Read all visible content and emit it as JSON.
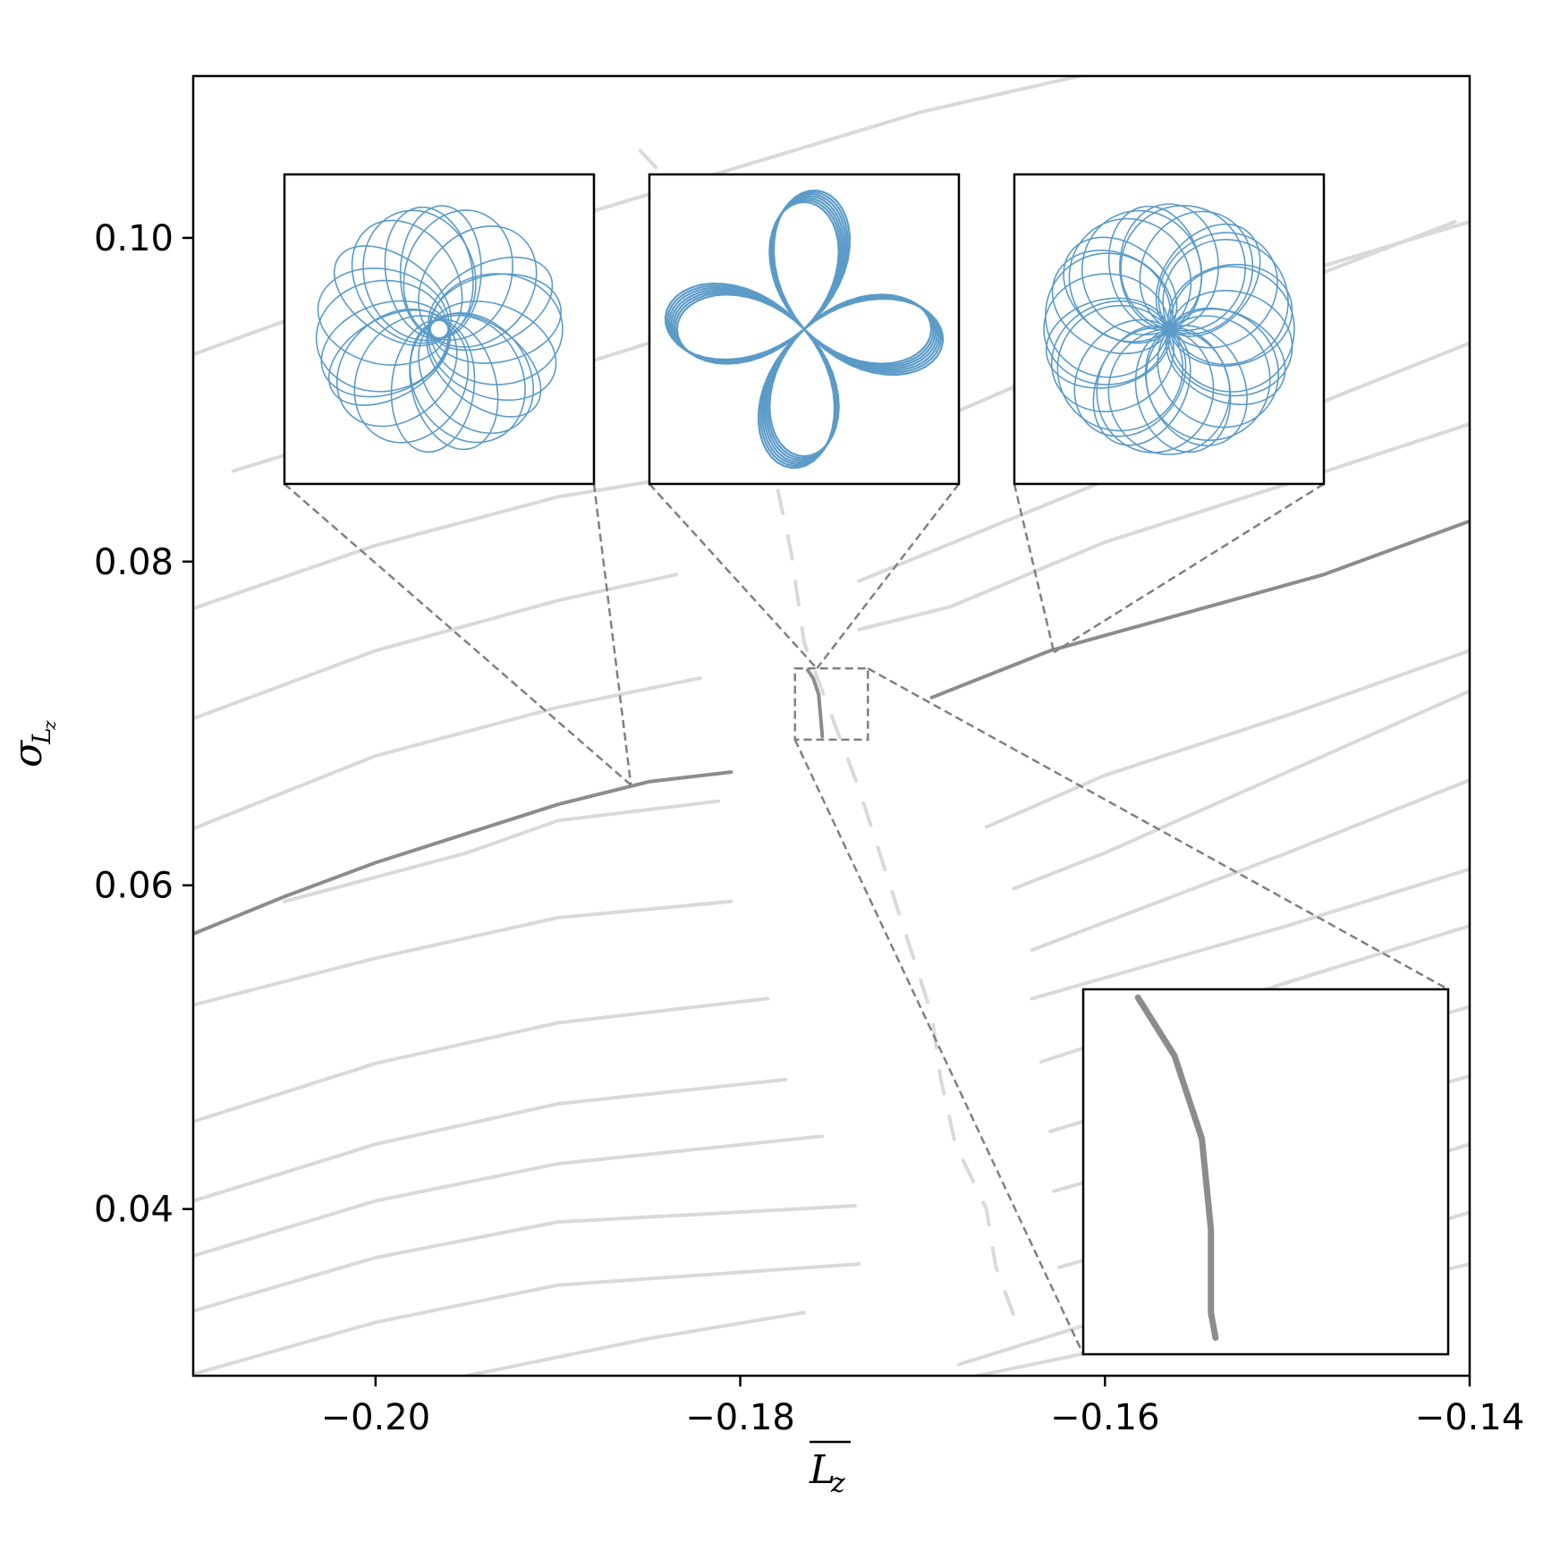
{
  "chart_data": {
    "type": "scatter",
    "title": "",
    "xlabel": "L_z (overline)",
    "xlabel_main": "L",
    "xlabel_sub": "z",
    "ylabel_main": "σ",
    "ylabel_sub": "L",
    "ylabel_subsub": "z",
    "xlim": [
      -0.21,
      -0.14
    ],
    "ylim": [
      0.0297,
      0.11
    ],
    "xticks": [
      -0.2,
      -0.18,
      -0.16,
      -0.14
    ],
    "xtick_labels": [
      "−0.20",
      "−0.18",
      "−0.16",
      "−0.14"
    ],
    "yticks": [
      0.04,
      0.06,
      0.08,
      0.1
    ],
    "ytick_labels": [
      "0.04",
      "0.06",
      "0.08",
      "0.10"
    ],
    "grid": false,
    "colors": {
      "background_curves": "#d9d9d9",
      "highlight_curves": "#8c8c8c",
      "orbits": "#5b9bc8",
      "connector": "#808080",
      "frame": "#000000"
    },
    "background_curves": [
      [
        [
          -0.21,
          0.0928
        ],
        [
          -0.19,
          0.101
        ],
        [
          -0.17,
          0.1078
        ],
        [
          -0.1575,
          0.111
        ]
      ],
      [
        [
          -0.2078,
          0.0856
        ],
        [
          -0.195,
          0.09
        ],
        [
          -0.185,
          0.0935
        ]
      ],
      [
        [
          -0.165,
          0.0905
        ],
        [
          -0.15,
          0.097
        ],
        [
          -0.1408,
          0.101
        ]
      ],
      [
        [
          -0.21,
          0.0771
        ],
        [
          -0.2,
          0.081
        ],
        [
          -0.19,
          0.084
        ],
        [
          -0.1835,
          0.0852
        ]
      ],
      [
        [
          -0.1722,
          0.0873
        ],
        [
          -0.16,
          0.0932
        ],
        [
          -0.15,
          0.0976
        ],
        [
          -0.14,
          0.101
        ]
      ],
      [
        [
          -0.21,
          0.0703
        ],
        [
          -0.2,
          0.0745
        ],
        [
          -0.19,
          0.0776
        ],
        [
          -0.1835,
          0.0792
        ]
      ],
      [
        [
          -0.1735,
          0.0788
        ],
        [
          -0.16,
          0.085
        ],
        [
          -0.15,
          0.089
        ],
        [
          -0.14,
          0.0935
        ]
      ],
      [
        [
          -0.21,
          0.0635
        ],
        [
          -0.2,
          0.068
        ],
        [
          -0.19,
          0.071
        ],
        [
          -0.1822,
          0.0728
        ]
      ],
      [
        [
          -0.1735,
          0.0758
        ],
        [
          -0.1685,
          0.0772
        ],
        [
          -0.16,
          0.0812
        ],
        [
          -0.15,
          0.0848
        ],
        [
          -0.14,
          0.0885
        ]
      ],
      [
        [
          -0.205,
          0.059
        ],
        [
          -0.195,
          0.062
        ],
        [
          -0.19,
          0.064
        ],
        [
          -0.1812,
          0.0652
        ]
      ],
      [
        [
          -0.1665,
          0.0636
        ],
        [
          -0.16,
          0.0668
        ],
        [
          -0.15,
          0.0705
        ],
        [
          -0.14,
          0.0745
        ]
      ],
      [
        [
          -0.165,
          0.0598
        ],
        [
          -0.16,
          0.062
        ],
        [
          -0.15,
          0.067
        ],
        [
          -0.14,
          0.072
        ]
      ],
      [
        [
          -0.21,
          0.0526
        ],
        [
          -0.2,
          0.0555
        ],
        [
          -0.19,
          0.058
        ],
        [
          -0.1805,
          0.059
        ]
      ],
      [
        [
          -0.164,
          0.056
        ],
        [
          -0.15,
          0.062
        ],
        [
          -0.14,
          0.0665
        ]
      ],
      [
        [
          -0.21,
          0.0454
        ],
        [
          -0.2,
          0.049
        ],
        [
          -0.19,
          0.0515
        ],
        [
          -0.1785,
          0.053
        ]
      ],
      [
        [
          -0.164,
          0.053
        ],
        [
          -0.15,
          0.0575
        ],
        [
          -0.14,
          0.061
        ]
      ],
      [
        [
          -0.21,
          0.0405
        ],
        [
          -0.2,
          0.044
        ],
        [
          -0.19,
          0.0465
        ],
        [
          -0.1775,
          0.048
        ]
      ],
      [
        [
          -0.1635,
          0.0491
        ],
        [
          -0.15,
          0.054
        ],
        [
          -0.14,
          0.0575
        ]
      ],
      [
        [
          -0.21,
          0.0371
        ],
        [
          -0.2,
          0.0405
        ],
        [
          -0.19,
          0.0428
        ],
        [
          -0.1755,
          0.0445
        ]
      ],
      [
        [
          -0.163,
          0.0448
        ],
        [
          -0.15,
          0.0492
        ],
        [
          -0.14,
          0.0525
        ]
      ],
      [
        [
          -0.21,
          0.0337
        ],
        [
          -0.2,
          0.037
        ],
        [
          -0.19,
          0.0392
        ],
        [
          -0.1737,
          0.0402
        ]
      ],
      [
        [
          -0.1628,
          0.0411
        ],
        [
          -0.15,
          0.0452
        ],
        [
          -0.14,
          0.0482
        ]
      ],
      [
        [
          -0.21,
          0.0298
        ],
        [
          -0.2,
          0.033
        ],
        [
          -0.19,
          0.0353
        ],
        [
          -0.1735,
          0.0366
        ]
      ],
      [
        [
          -0.1625,
          0.0364
        ],
        [
          -0.15,
          0.0405
        ],
        [
          -0.14,
          0.044
        ]
      ],
      [
        [
          -0.195,
          0.0297
        ],
        [
          -0.185,
          0.032
        ],
        [
          -0.1765,
          0.0336
        ]
      ],
      [
        [
          -0.168,
          0.0304
        ],
        [
          -0.16,
          0.0332
        ],
        [
          -0.15,
          0.0363
        ],
        [
          -0.14,
          0.0398
        ]
      ],
      [
        [
          -0.167,
          0.0297
        ],
        [
          -0.158,
          0.0318
        ],
        [
          -0.15,
          0.034
        ],
        [
          -0.14,
          0.0366
        ]
      ],
      [
        [
          -0.1855,
          0.1054
        ],
        [
          -0.1835,
          0.103
        ],
        [
          -0.1815,
          0.098
        ],
        [
          -0.179,
          0.09
        ],
        [
          -0.1772,
          0.0805
        ],
        [
          -0.1765,
          0.075
        ],
        [
          -0.1735,
          0.066
        ],
        [
          -0.1695,
          0.052
        ],
        [
          -0.169,
          0.048
        ],
        [
          -0.1682,
          0.044
        ],
        [
          -0.1665,
          0.04
        ],
        [
          -0.166,
          0.0365
        ],
        [
          -0.165,
          0.0334
        ]
      ]
    ],
    "highlight_curves": [
      [
        [
          -0.21,
          0.057
        ],
        [
          -0.205,
          0.0593
        ],
        [
          -0.2,
          0.0614
        ],
        [
          -0.195,
          0.0632
        ],
        [
          -0.19,
          0.065
        ],
        [
          -0.185,
          0.0664
        ],
        [
          -0.1805,
          0.067
        ]
      ],
      [
        [
          -0.1695,
          0.0716
        ],
        [
          -0.163,
          0.0745
        ],
        [
          -0.155,
          0.077
        ],
        [
          -0.148,
          0.0792
        ],
        [
          -0.14,
          0.0825
        ]
      ],
      [
        [
          -0.1763,
          0.0733
        ],
        [
          -0.176,
          0.0728
        ],
        [
          -0.1757,
          0.0718
        ],
        [
          -0.1756,
          0.0705
        ],
        [
          -0.1755,
          0.0692
        ]
      ]
    ],
    "zoom_box": {
      "x": [
        -0.177,
        -0.173
      ],
      "y": [
        0.069,
        0.0734
      ]
    },
    "zoom_inset_points": [
      [
        -0.1764,
        0.0733
      ],
      [
        -0.176,
        0.0726
      ],
      [
        -0.1757,
        0.0716
      ],
      [
        -0.1756,
        0.0705
      ],
      [
        -0.1756,
        0.0695
      ],
      [
        -0.17555,
        0.0692
      ]
    ],
    "connections": [
      {
        "inset": "orbit-1",
        "target": [
          -0.186,
          0.0662
        ]
      },
      {
        "inset": "orbit-2",
        "target": [
          -0.1758,
          0.0734
        ]
      },
      {
        "inset": "orbit-3",
        "target": [
          -0.1628,
          0.0744
        ]
      }
    ],
    "orbit_insets": [
      {
        "id": "orbit-1",
        "shape": "rosette",
        "petals": 4,
        "n_loops": 22
      },
      {
        "id": "orbit-2",
        "shape": "four-lobe",
        "petals": 4,
        "n_loops": 7
      },
      {
        "id": "orbit-3",
        "shape": "rosette",
        "petals": 8,
        "n_loops": 28
      }
    ]
  }
}
